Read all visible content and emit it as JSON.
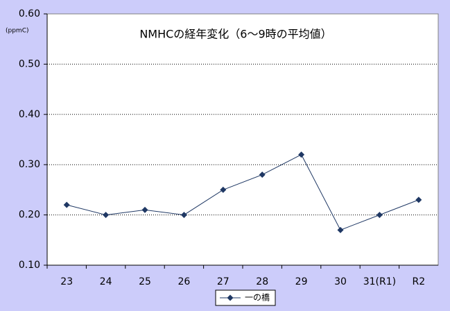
{
  "chart_data": {
    "type": "line",
    "title": "NMHCの経年変化（6～9時の平均値）",
    "y_unit": "(ppmC)",
    "categories": [
      "23",
      "24",
      "25",
      "26",
      "27",
      "28",
      "29",
      "30",
      "31(R1)",
      "R2"
    ],
    "series": [
      {
        "name": "一の橋",
        "color": "#1f3864",
        "values": [
          0.22,
          0.2,
          0.21,
          0.2,
          0.25,
          0.28,
          0.32,
          0.17,
          0.2,
          0.23
        ]
      }
    ],
    "ylim": [
      0.1,
      0.6
    ],
    "yticks": [
      {
        "value": 0.1,
        "label": "0.10"
      },
      {
        "value": 0.2,
        "label": "0.20"
      },
      {
        "value": 0.3,
        "label": "0.30"
      },
      {
        "value": 0.4,
        "label": "0.40"
      },
      {
        "value": 0.5,
        "label": "0.50"
      },
      {
        "value": 0.6,
        "label": "0.60"
      }
    ],
    "grid": true,
    "legend": "bottom"
  }
}
